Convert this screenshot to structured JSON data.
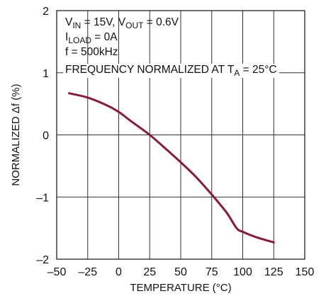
{
  "chart_data": {
    "type": "line",
    "xlabel": "TEMPERATURE (°C)",
    "ylabel": "NORMALIZED Δf (%)",
    "xlim": [
      -50,
      150
    ],
    "ylim": [
      -2,
      2
    ],
    "x_ticks": [
      "–50",
      "–25",
      "0",
      "25",
      "50",
      "75",
      "100",
      "125",
      "150"
    ],
    "y_ticks": [
      "–2",
      "–1",
      "0",
      "1",
      "2"
    ],
    "grid": true,
    "line_color": "#8b1a3a",
    "series": [
      {
        "x": [
          -40,
          -25,
          -10,
          0,
          10,
          25,
          40,
          50,
          62,
          75,
          87,
          95,
          100,
          110,
          125
        ],
        "y": [
          0.67,
          0.6,
          0.48,
          0.37,
          0.22,
          0.0,
          -0.26,
          -0.44,
          -0.67,
          -0.96,
          -1.25,
          -1.5,
          -1.56,
          -1.64,
          -1.73
        ]
      }
    ],
    "annotations": [
      {
        "parts": [
          {
            "t": "V"
          },
          {
            "t": "IN",
            "sub": true
          },
          {
            "t": " = 15V, V"
          },
          {
            "t": "OUT",
            "sub": true
          },
          {
            "t": " = 0.6V"
          }
        ]
      },
      {
        "parts": [
          {
            "t": "I"
          },
          {
            "t": "LOAD",
            "sub": true
          },
          {
            "t": " = 0A"
          }
        ]
      },
      {
        "parts": [
          {
            "t": "f = 500kHz"
          }
        ]
      },
      {
        "parts": [
          {
            "t": "FREQUENCY NORMALIZED AT T"
          },
          {
            "t": "A",
            "sub": true
          },
          {
            "t": " = 25°C"
          }
        ]
      }
    ]
  }
}
